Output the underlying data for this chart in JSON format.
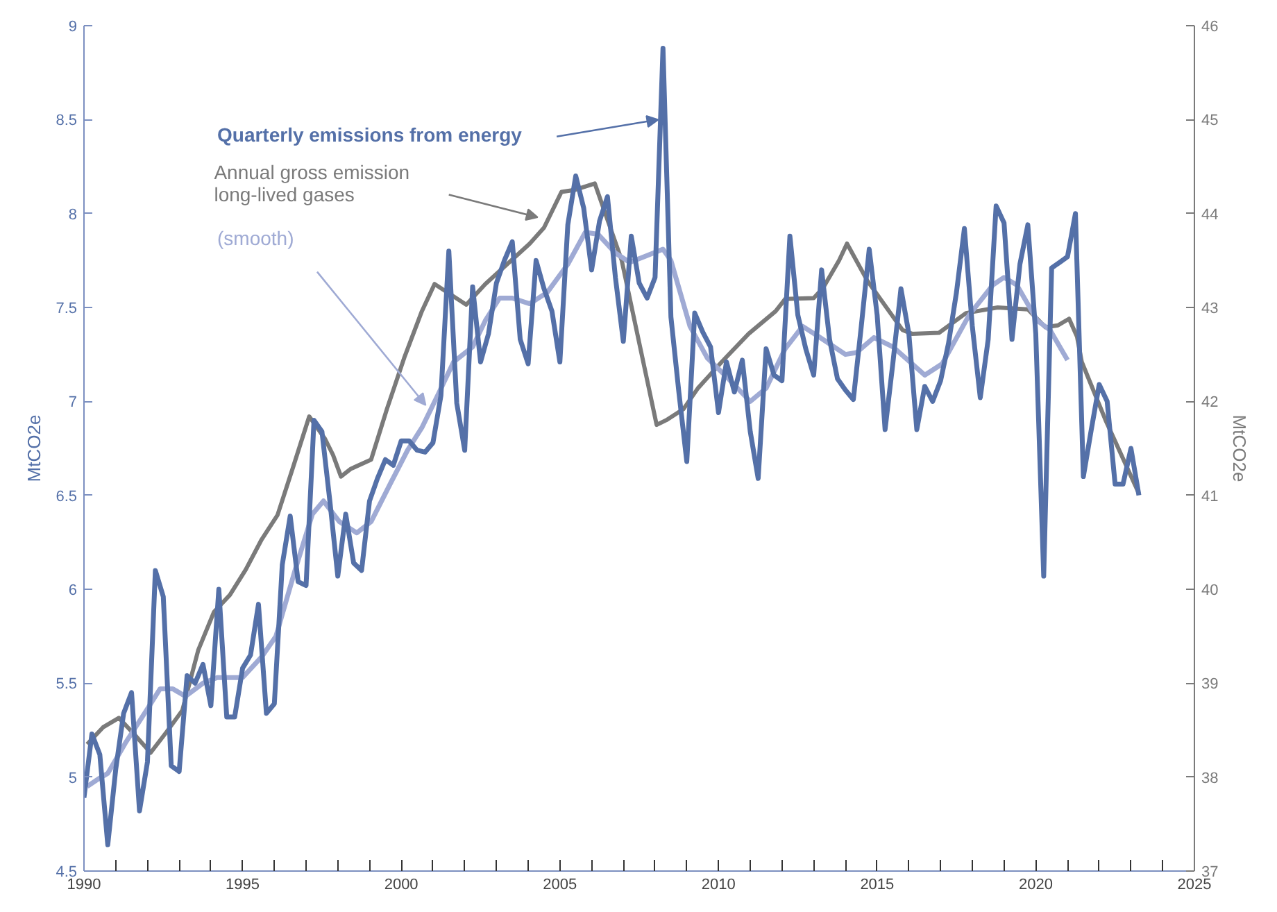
{
  "chart_data": {
    "type": "line",
    "xlim": [
      1990,
      2025
    ],
    "xticks": [
      1990,
      {
        "value": 1991,
        "label": null
      },
      {
        "value": 1992,
        "label": null
      },
      {
        "value": 1993,
        "label": null
      },
      {
        "value": 1994,
        "label": null
      },
      1995,
      {
        "value": 1996,
        "label": null
      },
      {
        "value": 1997,
        "label": null
      },
      {
        "value": 1998,
        "label": null
      },
      {
        "value": 1999,
        "label": null
      },
      2000,
      {
        "value": 2001,
        "label": null
      },
      {
        "value": 2002,
        "label": null
      },
      {
        "value": 2003,
        "label": null
      },
      {
        "value": 2004,
        "label": null
      },
      2005,
      {
        "value": 2006,
        "label": null
      },
      {
        "value": 2007,
        "label": null
      },
      {
        "value": 2008,
        "label": null
      },
      {
        "value": 2009,
        "label": null
      },
      2010,
      {
        "value": 2011,
        "label": null
      },
      {
        "value": 2012,
        "label": null
      },
      {
        "value": 2013,
        "label": null
      },
      {
        "value": 2014,
        "label": null
      },
      2015,
      {
        "value": 2016,
        "label": null
      },
      {
        "value": 2017,
        "label": null
      },
      {
        "value": 2018,
        "label": null
      },
      {
        "value": 2019,
        "label": null
      },
      2020,
      {
        "value": 2021,
        "label": null
      },
      {
        "value": 2022,
        "label": null
      },
      {
        "value": 2023,
        "label": null
      },
      {
        "value": 2024,
        "label": null
      },
      2025
    ],
    "ylim": [
      4.5,
      9
    ],
    "yticks": [
      4.5,
      5,
      5.5,
      6,
      6.5,
      7,
      7.5,
      8,
      8.5,
      9
    ],
    "y2lim": [
      37,
      46
    ],
    "y2ticks": [
      37,
      38,
      39,
      40,
      41,
      42,
      43,
      44,
      45,
      46
    ],
    "ylabel": "MtCO2e",
    "y2label": "MtCO2e",
    "grid": false,
    "marker": "none",
    "line_style": "solid",
    "series": [
      {
        "name": "Quarterly emissions from energy",
        "color": "#5470a8",
        "x": [
          1990.0,
          1990.25,
          1990.5,
          1990.75,
          1991.0,
          1991.25,
          1991.5,
          1991.75,
          1992.0,
          1992.25,
          1992.5,
          1992.75,
          1993.0,
          1993.25,
          1993.5,
          1993.75,
          1994.0,
          1994.25,
          1994.5,
          1994.75,
          1995.0,
          1995.25,
          1995.5,
          1995.75,
          1996.0,
          1996.25,
          1996.5,
          1996.75,
          1997.0,
          1997.25,
          1997.5,
          1997.75,
          1998.0,
          1998.25,
          1998.5,
          1998.75,
          1999.0,
          1999.25,
          1999.5,
          1999.75,
          2000.0,
          2000.25,
          2000.5,
          2000.75,
          2001.0,
          2001.25,
          2001.5,
          2001.75,
          2002.0,
          2002.25,
          2002.5,
          2002.75,
          2003.0,
          2003.25,
          2003.5,
          2003.75,
          2004.0,
          2004.25,
          2004.5,
          2004.75,
          2005.0,
          2005.25,
          2005.5,
          2005.75,
          2006.0,
          2006.25,
          2006.5,
          2006.75,
          2007.0,
          2007.25,
          2007.5,
          2007.75,
          2008.0,
          2008.25,
          2008.5,
          2008.75,
          2009.0,
          2009.25,
          2009.5,
          2009.75,
          2010.0,
          2010.25,
          2010.5,
          2010.75,
          2011.0,
          2011.25,
          2011.5,
          2011.75,
          2012.0,
          2012.25,
          2012.5,
          2012.75,
          2013.0,
          2013.25,
          2013.5,
          2013.75,
          2014.0,
          2014.25,
          2014.5,
          2014.75,
          2015.0,
          2015.25,
          2015.5,
          2015.75,
          2016.0,
          2016.25,
          2016.5,
          2016.75,
          2017.0,
          2017.25,
          2017.5,
          2017.75,
          2018.0,
          2018.25,
          2018.5,
          2018.75,
          2019.0,
          2019.25,
          2019.5,
          2019.75,
          2020.0,
          2020.25,
          2020.5,
          2020.75,
          2021.0,
          2021.25,
          2021.5,
          2021.75,
          2022.0,
          2022.25,
          2022.5,
          2022.75,
          2023.0,
          2023.25
        ],
        "values": [
          4.89,
          5.23,
          5.12,
          4.64,
          5.04,
          5.34,
          5.45,
          4.82,
          5.08,
          6.1,
          5.96,
          5.06,
          5.03,
          5.54,
          5.5,
          5.6,
          5.38,
          6.0,
          5.32,
          5.32,
          5.58,
          5.65,
          5.92,
          5.34,
          5.39,
          6.13,
          6.39,
          6.04,
          6.02,
          6.9,
          6.84,
          6.47,
          6.07,
          6.4,
          6.14,
          6.1,
          6.47,
          6.59,
          6.69,
          6.66,
          6.79,
          6.79,
          6.74,
          6.73,
          6.78,
          7.03,
          7.8,
          6.99,
          6.74,
          7.61,
          7.21,
          7.36,
          7.63,
          7.75,
          7.85,
          7.33,
          7.2,
          7.75,
          7.6,
          7.48,
          7.21,
          7.94,
          8.2,
          8.03,
          7.7,
          7.96,
          8.09,
          7.66,
          7.32,
          7.88,
          7.63,
          7.55,
          7.66,
          8.88,
          7.45,
          7.05,
          6.68,
          7.47,
          7.37,
          7.29,
          6.94,
          7.21,
          7.05,
          7.22,
          6.84,
          6.59,
          7.28,
          7.14,
          7.11,
          7.88,
          7.46,
          7.28,
          7.14,
          7.7,
          7.33,
          7.12,
          7.06,
          7.01,
          7.4,
          7.81,
          7.46,
          6.85,
          7.21,
          7.6,
          7.36,
          6.85,
          7.08,
          7.0,
          7.11,
          7.31,
          7.58,
          7.92,
          7.4,
          7.02,
          7.33,
          8.04,
          7.95,
          7.33,
          7.73,
          7.94,
          7.36,
          6.07,
          7.71,
          7.74,
          7.77,
          8.0,
          6.6,
          6.85,
          7.09,
          7.0,
          6.56,
          6.56,
          6.75,
          6.5
        ]
      },
      {
        "name": "Annual gross emission\nlong-lived gases",
        "color": "#7a7a7a",
        "axis": "y2",
        "x": [
          1990.1,
          1990.6,
          1991.1,
          1991.6,
          1992.1,
          1992.6,
          1993.1,
          1993.6,
          1994.1,
          1994.6,
          1995.1,
          1995.6,
          1996.1,
          1996.6,
          1997.1,
          1997.6,
          1997.85,
          1998.1,
          1998.4,
          1999.05,
          1999.55,
          2000.1,
          2000.65,
          2001.05,
          2002.05,
          2002.65,
          2004.05,
          2004.5,
          2005.05,
          2005.45,
          2006.1,
          2006.95,
          2008.05,
          2008.35,
          2008.9,
          2009.35,
          2010.1,
          2010.95,
          2011.8,
          2012.1,
          2013.0,
          2013.3,
          2013.8,
          2014.05,
          2014.7,
          2015.8,
          2016.1,
          2016.95,
          2017.8,
          2018.8,
          2019.75,
          2020.3,
          2020.7,
          2021.05,
          2021.3,
          2021.45,
          2022.2,
          2023.25
        ],
        "values": [
          38.35,
          38.53,
          38.63,
          38.45,
          38.26,
          38.48,
          38.71,
          39.35,
          39.76,
          39.94,
          40.21,
          40.53,
          40.79,
          41.31,
          41.84,
          41.6,
          41.43,
          41.2,
          41.28,
          41.38,
          41.92,
          42.47,
          42.96,
          43.25,
          43.03,
          43.25,
          43.68,
          43.85,
          44.23,
          44.25,
          44.32,
          43.5,
          41.75,
          41.8,
          41.92,
          42.14,
          42.42,
          42.72,
          42.96,
          43.09,
          43.1,
          43.21,
          43.5,
          43.68,
          43.28,
          42.76,
          42.72,
          42.73,
          42.94,
          43.0,
          42.98,
          42.79,
          42.81,
          42.88,
          42.69,
          42.42,
          41.8,
          41.02
        ]
      },
      {
        "name": "(smooth)",
        "color": "#9faad4",
        "x": [
          1990.1,
          1990.45,
          1990.75,
          1991.3,
          1991.95,
          1992.4,
          1992.8,
          1993.2,
          1993.75,
          1994.2,
          1995.0,
          1995.6,
          1996.05,
          1996.65,
          1997.2,
          1997.55,
          1998.05,
          1998.6,
          1999.05,
          1999.65,
          2000.2,
          2000.65,
          2001.2,
          2001.65,
          2002.25,
          2002.65,
          2003.1,
          2003.5,
          2004.05,
          2004.6,
          2005.25,
          2005.8,
          2006.2,
          2006.75,
          2007.2,
          2007.65,
          2008.25,
          2008.5,
          2009.1,
          2009.65,
          2010.2,
          2011.0,
          2011.5,
          2012.1,
          2012.65,
          2013.2,
          2014.0,
          2014.35,
          2014.9,
          2015.5,
          2016.5,
          2017.05,
          2017.9,
          2018.65,
          2019.0,
          2019.4,
          2020.05,
          2020.45,
          2021.0
        ],
        "values": [
          4.95,
          4.99,
          5.02,
          5.18,
          5.35,
          5.47,
          5.47,
          5.43,
          5.5,
          5.53,
          5.53,
          5.64,
          5.75,
          6.1,
          6.4,
          6.47,
          6.36,
          6.3,
          6.36,
          6.56,
          6.74,
          6.86,
          7.05,
          7.21,
          7.29,
          7.43,
          7.55,
          7.55,
          7.52,
          7.58,
          7.73,
          7.9,
          7.89,
          7.79,
          7.74,
          7.77,
          7.81,
          7.75,
          7.4,
          7.23,
          7.14,
          7.0,
          7.07,
          7.28,
          7.4,
          7.34,
          7.25,
          7.26,
          7.34,
          7.29,
          7.14,
          7.2,
          7.46,
          7.62,
          7.66,
          7.62,
          7.43,
          7.38,
          7.22
        ]
      }
    ]
  }
}
